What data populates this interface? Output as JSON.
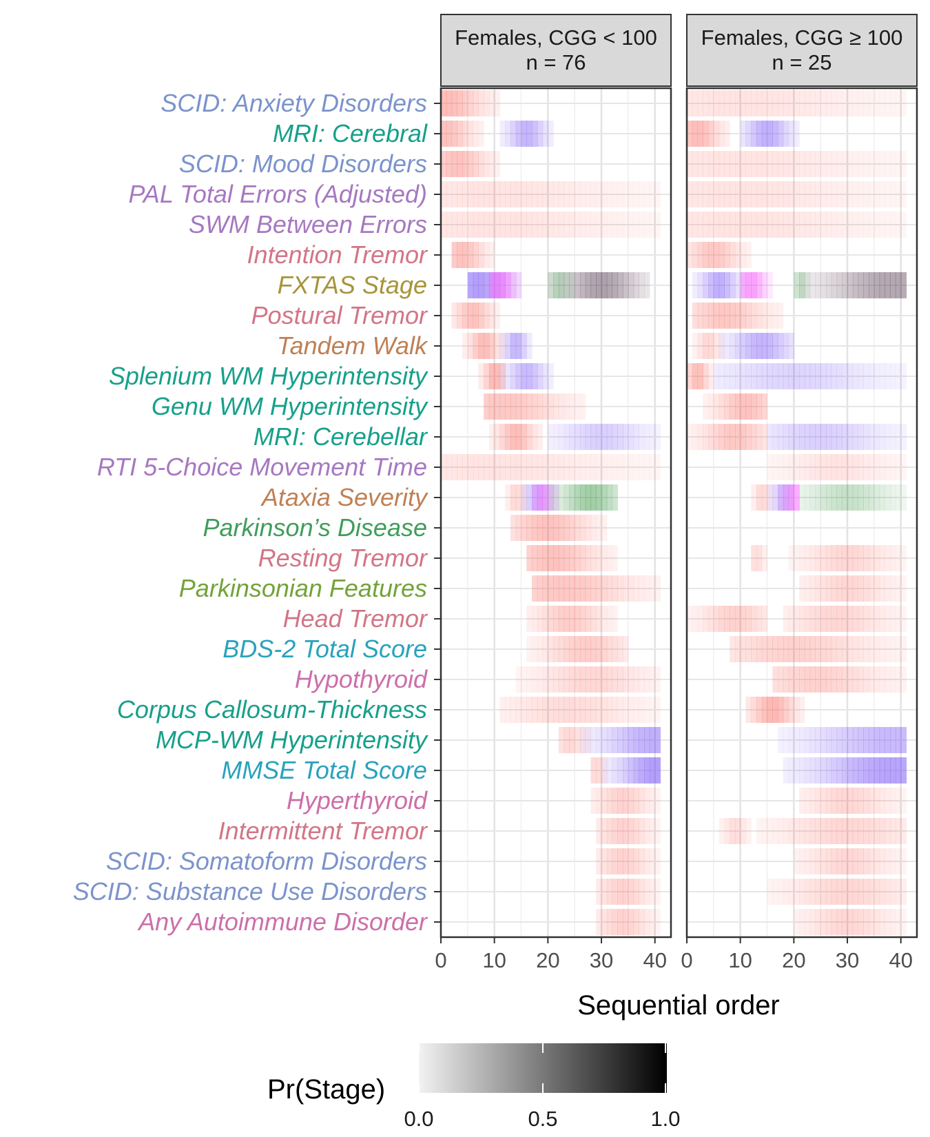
{
  "chart_data": {
    "type": "heatmap",
    "xlabel": "Sequential order",
    "xlim": [
      0,
      43
    ],
    "x_ticks": [
      0,
      10,
      20,
      30,
      40
    ],
    "x_tick_labels": [
      "0",
      "10",
      "20",
      "30",
      "40"
    ],
    "grid": true,
    "legend": {
      "title": "Pr(Stage)",
      "position": "bottom",
      "range": [
        0,
        1
      ],
      "ticks": [
        "0.0",
        "0.5",
        "1.0"
      ]
    },
    "colors": {
      "Cognitive": "#a678c0",
      "Imaging": "#16a08a",
      "Psychiatric": "#7b93cc",
      "Tremor": "#d27586",
      "Gait": "#bf8054",
      "Stage": "#a69439",
      "Clinical": "#28a2bc",
      "Parkinson": "#3f9d5a",
      "Parkinsonian": "#74a23a",
      "Autoimmune": "#cc6fa9"
    },
    "event_colors": [
      "Psychiatric",
      "Imaging",
      "Psychiatric",
      "Cognitive",
      "Cognitive",
      "Tremor",
      "Stage",
      "Tremor",
      "Gait",
      "Imaging",
      "Imaging",
      "Imaging",
      "Cognitive",
      "Gait",
      "Parkinson",
      "Tremor",
      "Parkinsonian",
      "Tremor",
      "Clinical",
      "Autoimmune",
      "Imaging",
      "Imaging",
      "Clinical",
      "Autoimmune",
      "Tremor",
      "Psychiatric",
      "Psychiatric",
      "Autoimmune"
    ],
    "events": [
      "SCID: Anxiety Disorders",
      "MRI: Cerebral",
      "SCID: Mood Disorders",
      "PAL Total Errors (Adjusted)",
      "SWM Between Errors",
      "Intention Tremor",
      "FXTAS Stage",
      "Postural Tremor",
      "Tandem Walk",
      "Splenium WM Hyperintensity",
      "Genu WM Hyperintensity",
      "MRI: Cerebellar",
      "RTI 5-Choice  Movement Time",
      "Ataxia Severity",
      "Parkinson’s Disease",
      "Resting Tremor",
      "Parkinsonian Features",
      "Head Tremor",
      "BDS-2  Total Score",
      "Hypothyroid",
      "Corpus Callosum-Thickness ",
      "MCP-WM  Hyperintensity",
      "MMSE Total Score",
      "Hyperthyroid",
      "Intermittent Tremor",
      "SCID: Somatoform Disorders",
      "SCID: Substance Use Disorders",
      "Any Autoimmune Disorder"
    ],
    "panels": [
      {
        "strip_line1": "Females, CGG < 100",
        "strip_line2": "n = 76",
        "rows": [
          [
            {
              "x0": 0,
              "x1": 11,
              "peak": 1,
              "p": 0.55,
              "c": "salmon"
            }
          ],
          [
            {
              "x0": 0,
              "x1": 8,
              "peak": 1,
              "p": 0.5,
              "c": "salmon"
            },
            {
              "x0": 11,
              "x1": 21,
              "peak": 16,
              "p": 0.6,
              "c": "violet"
            }
          ],
          [
            {
              "x0": 0,
              "x1": 11,
              "peak": 3,
              "p": 0.5,
              "c": "salmon"
            }
          ],
          [
            {
              "x0": 0,
              "x1": 41,
              "peak": 10,
              "p": 0.18,
              "c": "salmon"
            }
          ],
          [
            {
              "x0": 0,
              "x1": 41,
              "peak": 10,
              "p": 0.18,
              "c": "salmon"
            }
          ],
          [
            {
              "x0": 2,
              "x1": 10,
              "peak": 4,
              "p": 0.5,
              "c": "salmon"
            }
          ],
          [
            {
              "x0": 5,
              "x1": 15,
              "peak": 7,
              "p": 0.8,
              "c": "violet"
            },
            {
              "x0": 9,
              "x1": 15,
              "peak": 11,
              "p": 0.7,
              "c": "magenta"
            },
            {
              "x0": 20,
              "x1": 39,
              "peak": 30,
              "p": 0.6,
              "c": "grey"
            },
            {
              "x0": 20,
              "x1": 25,
              "peak": 22,
              "p": 0.3,
              "c": "green"
            }
          ],
          [
            {
              "x0": 2,
              "x1": 11,
              "peak": 6,
              "p": 0.5,
              "c": "salmon"
            }
          ],
          [
            {
              "x0": 4,
              "x1": 12,
              "peak": 8,
              "p": 0.55,
              "c": "salmon"
            },
            {
              "x0": 11,
              "x1": 17,
              "peak": 14,
              "p": 0.6,
              "c": "violet"
            }
          ],
          [
            {
              "x0": 7,
              "x1": 12,
              "peak": 10,
              "p": 0.6,
              "c": "salmon"
            },
            {
              "x0": 11,
              "x1": 21,
              "peak": 16,
              "p": 0.55,
              "c": "violet"
            }
          ],
          [
            {
              "x0": 8,
              "x1": 27,
              "peak": 12,
              "p": 0.45,
              "c": "salmon"
            }
          ],
          [
            {
              "x0": 9,
              "x1": 19,
              "peak": 14,
              "p": 0.55,
              "c": "salmon"
            },
            {
              "x0": 20,
              "x1": 41,
              "peak": 30,
              "p": 0.35,
              "c": "violet"
            }
          ],
          [
            {
              "x0": 0,
              "x1": 41,
              "peak": 10,
              "p": 0.18,
              "c": "salmon"
            }
          ],
          [
            {
              "x0": 15,
              "x1": 22,
              "peak": 18,
              "p": 0.5,
              "c": "violet"
            },
            {
              "x0": 17,
              "x1": 22,
              "peak": 19,
              "p": 0.5,
              "c": "magenta"
            },
            {
              "x0": 20,
              "x1": 33,
              "peak": 28,
              "p": 0.55,
              "c": "green"
            },
            {
              "x0": 12,
              "x1": 16,
              "peak": 14,
              "p": 0.3,
              "c": "salmon"
            }
          ],
          [
            {
              "x0": 13,
              "x1": 31,
              "peak": 20,
              "p": 0.5,
              "c": "salmon"
            }
          ],
          [
            {
              "x0": 16,
              "x1": 33,
              "peak": 21,
              "p": 0.5,
              "c": "salmon"
            }
          ],
          [
            {
              "x0": 17,
              "x1": 41,
              "peak": 23,
              "p": 0.45,
              "c": "salmon"
            }
          ],
          [
            {
              "x0": 16,
              "x1": 33,
              "peak": 24,
              "p": 0.4,
              "c": "salmon"
            }
          ],
          [
            {
              "x0": 16,
              "x1": 35,
              "peak": 27,
              "p": 0.4,
              "c": "salmon"
            }
          ],
          [
            {
              "x0": 14,
              "x1": 41,
              "peak": 28,
              "p": 0.3,
              "c": "salmon"
            }
          ],
          [
            {
              "x0": 11,
              "x1": 41,
              "peak": 24,
              "p": 0.25,
              "c": "salmon"
            }
          ],
          [
            {
              "x0": 22,
              "x1": 28,
              "peak": 24,
              "p": 0.3,
              "c": "salmon"
            },
            {
              "x0": 26,
              "x1": 41,
              "peak": 40,
              "p": 0.65,
              "c": "violet"
            }
          ],
          [
            {
              "x0": 30,
              "x1": 41,
              "peak": 40,
              "p": 0.8,
              "c": "violet"
            },
            {
              "x0": 28,
              "x1": 31,
              "peak": 29,
              "p": 0.3,
              "c": "salmon"
            }
          ],
          [
            {
              "x0": 28,
              "x1": 41,
              "peak": 34,
              "p": 0.35,
              "c": "salmon"
            }
          ],
          [
            {
              "x0": 29,
              "x1": 41,
              "peak": 34,
              "p": 0.35,
              "c": "salmon"
            }
          ],
          [
            {
              "x0": 29,
              "x1": 41,
              "peak": 34,
              "p": 0.35,
              "c": "salmon"
            }
          ],
          [
            {
              "x0": 29,
              "x1": 41,
              "peak": 34,
              "p": 0.35,
              "c": "salmon"
            }
          ],
          [
            {
              "x0": 29,
              "x1": 41,
              "peak": 34,
              "p": 0.35,
              "c": "salmon"
            }
          ]
        ]
      },
      {
        "strip_line1": "Females, CGG ≥ 100",
        "strip_line2": "n = 25",
        "rows": [
          [
            {
              "x0": 0,
              "x1": 41,
              "peak": 10,
              "p": 0.18,
              "c": "salmon"
            }
          ],
          [
            {
              "x0": 0,
              "x1": 8,
              "peak": 2,
              "p": 0.55,
              "c": "salmon"
            },
            {
              "x0": 10,
              "x1": 21,
              "peak": 15,
              "p": 0.65,
              "c": "violet"
            }
          ],
          [
            {
              "x0": 0,
              "x1": 41,
              "peak": 10,
              "p": 0.18,
              "c": "salmon"
            }
          ],
          [
            {
              "x0": 0,
              "x1": 41,
              "peak": 10,
              "p": 0.18,
              "c": "salmon"
            }
          ],
          [
            {
              "x0": 0,
              "x1": 41,
              "peak": 10,
              "p": 0.18,
              "c": "salmon"
            }
          ],
          [
            {
              "x0": 0,
              "x1": 12,
              "peak": 5,
              "p": 0.45,
              "c": "salmon"
            }
          ],
          [
            {
              "x0": 1,
              "x1": 11,
              "peak": 6,
              "p": 0.65,
              "c": "violet"
            },
            {
              "x0": 10,
              "x1": 16,
              "peak": 12,
              "p": 0.7,
              "c": "magenta"
            },
            {
              "x0": 21,
              "x1": 41,
              "peak": 38,
              "p": 0.55,
              "c": "grey"
            },
            {
              "x0": 20,
              "x1": 23,
              "peak": 21,
              "p": 0.3,
              "c": "green"
            }
          ],
          [
            {
              "x0": 1,
              "x1": 18,
              "peak": 7,
              "p": 0.45,
              "c": "salmon"
            }
          ],
          [
            {
              "x0": 1,
              "x1": 7,
              "peak": 4,
              "p": 0.3,
              "c": "salmon"
            },
            {
              "x0": 6,
              "x1": 20,
              "peak": 14,
              "p": 0.6,
              "c": "violet"
            }
          ],
          [
            {
              "x0": 0,
              "x1": 5,
              "peak": 2,
              "p": 0.55,
              "c": "salmon"
            },
            {
              "x0": 5,
              "x1": 41,
              "peak": 20,
              "p": 0.3,
              "c": "violet"
            }
          ],
          [
            {
              "x0": 3,
              "x1": 15,
              "peak": 11,
              "p": 0.5,
              "c": "salmon"
            }
          ],
          [
            {
              "x0": 0,
              "x1": 15,
              "peak": 9,
              "p": 0.45,
              "c": "salmon"
            },
            {
              "x0": 15,
              "x1": 41,
              "peak": 25,
              "p": 0.35,
              "c": "violet"
            }
          ],
          [
            {
              "x0": 15,
              "x1": 41,
              "peak": 28,
              "p": 0.18,
              "c": "salmon"
            }
          ],
          [
            {
              "x0": 12,
              "x1": 16,
              "peak": 14,
              "p": 0.3,
              "c": "salmon"
            },
            {
              "x0": 15,
              "x1": 20,
              "peak": 18,
              "p": 0.5,
              "c": "violet"
            },
            {
              "x0": 17,
              "x1": 21,
              "peak": 20,
              "p": 0.6,
              "c": "magenta"
            },
            {
              "x0": 21,
              "x1": 41,
              "peak": 30,
              "p": 0.3,
              "c": "green"
            }
          ],
          [],
          [
            {
              "x0": 12,
              "x1": 15,
              "peak": 13,
              "p": 0.25,
              "c": "salmon"
            },
            {
              "x0": 19,
              "x1": 41,
              "peak": 30,
              "p": 0.3,
              "c": "salmon"
            }
          ],
          [
            {
              "x0": 21,
              "x1": 41,
              "peak": 30,
              "p": 0.3,
              "c": "salmon"
            }
          ],
          [
            {
              "x0": 0,
              "x1": 15,
              "peak": 9,
              "p": 0.35,
              "c": "salmon"
            },
            {
              "x0": 18,
              "x1": 41,
              "peak": 28,
              "p": 0.3,
              "c": "salmon"
            }
          ],
          [
            {
              "x0": 8,
              "x1": 41,
              "peak": 20,
              "p": 0.35,
              "c": "salmon"
            }
          ],
          [
            {
              "x0": 16,
              "x1": 41,
              "peak": 24,
              "p": 0.35,
              "c": "salmon"
            }
          ],
          [
            {
              "x0": 11,
              "x1": 22,
              "peak": 16,
              "p": 0.6,
              "c": "salmon"
            }
          ],
          [
            {
              "x0": 17,
              "x1": 41,
              "peak": 38,
              "p": 0.55,
              "c": "violet"
            }
          ],
          [
            {
              "x0": 18,
              "x1": 41,
              "peak": 38,
              "p": 0.75,
              "c": "violet"
            }
          ],
          [
            {
              "x0": 21,
              "x1": 41,
              "peak": 30,
              "p": 0.3,
              "c": "salmon"
            }
          ],
          [
            {
              "x0": 6,
              "x1": 12,
              "peak": 9,
              "p": 0.25,
              "c": "salmon"
            },
            {
              "x0": 13,
              "x1": 41,
              "peak": 30,
              "p": 0.3,
              "c": "salmon"
            }
          ],
          [
            {
              "x0": 20,
              "x1": 41,
              "peak": 30,
              "p": 0.3,
              "c": "salmon"
            }
          ],
          [
            {
              "x0": 15,
              "x1": 41,
              "peak": 30,
              "p": 0.3,
              "c": "salmon"
            }
          ],
          [
            {
              "x0": 20,
              "x1": 41,
              "peak": 30,
              "p": 0.3,
              "c": "salmon"
            }
          ]
        ]
      }
    ]
  }
}
